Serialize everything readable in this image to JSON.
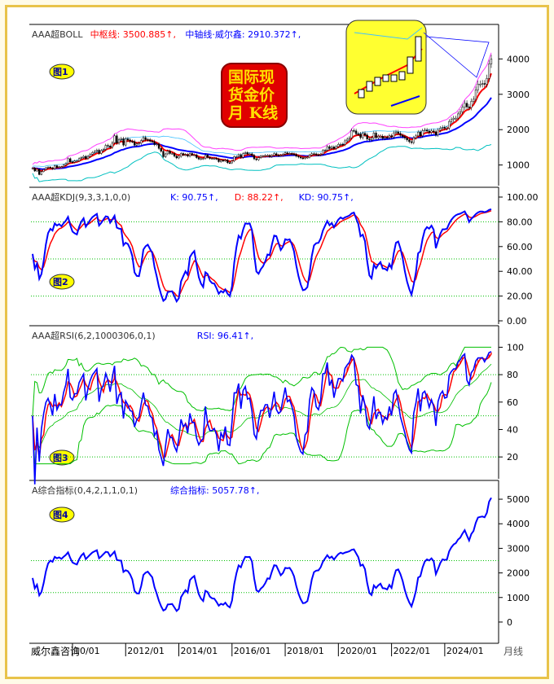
{
  "chart_data": {
    "type": "candlestick",
    "start": "2008/07",
    "period": "月线",
    "close": [
      915,
      830,
      880,
      730,
      815,
      870,
      920,
      940,
      920,
      890,
      980,
      930,
      950,
      950,
      1000,
      1040,
      1180,
      1090,
      1080,
      1115,
      1115,
      1180,
      1210,
      1245,
      1180,
      1245,
      1305,
      1355,
      1385,
      1420,
      1330,
      1410,
      1440,
      1555,
      1535,
      1500,
      1630,
      1825,
      1620,
      1720,
      1745,
      1565,
      1740,
      1710,
      1670,
      1665,
      1560,
      1600,
      1615,
      1690,
      1775,
      1720,
      1715,
      1675,
      1665,
      1580,
      1595,
      1470,
      1390,
      1235,
      1315,
      1395,
      1325,
      1325,
      1250,
      1200,
      1245,
      1325,
      1285,
      1295,
      1250,
      1325,
      1285,
      1285,
      1210,
      1170,
      1180,
      1185,
      1280,
      1215,
      1185,
      1185,
      1190,
      1170,
      1095,
      1135,
      1115,
      1140,
      1065,
      1060,
      1115,
      1235,
      1235,
      1290,
      1215,
      1320,
      1350,
      1310,
      1315,
      1275,
      1175,
      1150,
      1210,
      1250,
      1250,
      1270,
      1270,
      1240,
      1270,
      1320,
      1280,
      1270,
      1275,
      1305,
      1345,
      1320,
      1325,
      1315,
      1300,
      1250,
      1225,
      1200,
      1190,
      1215,
      1220,
      1280,
      1320,
      1315,
      1290,
      1285,
      1305,
      1410,
      1415,
      1520,
      1470,
      1510,
      1465,
      1520,
      1585,
      1585,
      1580,
      1685,
      1730,
      1770,
      1975,
      1965,
      1885,
      1880,
      1775,
      1895,
      1850,
      1735,
      1710,
      1770,
      1905,
      1770,
      1815,
      1815,
      1755,
      1785,
      1775,
      1830,
      1795,
      1910,
      1935,
      1895,
      1840,
      1805,
      1765,
      1710,
      1660,
      1635,
      1770,
      1825,
      1930,
      1825,
      1970,
      1990,
      1960,
      1920,
      1965,
      1940,
      1850,
      1985,
      2040,
      2065,
      2040,
      2045,
      2230,
      2285,
      2325,
      2325,
      2445,
      2505,
      2635,
      2745,
      2645,
      2625,
      2800,
      2860,
      3125,
      3290,
      3290,
      3305,
      3290,
      3450,
      3860,
      4000
    ],
    "x_ticks": [
      {
        "label": "10/01",
        "date": "2010/01"
      },
      {
        "label": "2012/01",
        "date": "2012/01"
      },
      {
        "label": "2014/01",
        "date": "2014/01"
      },
      {
        "label": "2016/01",
        "date": "2016/01"
      },
      {
        "label": "2018/01",
        "date": "2018/01"
      },
      {
        "label": "2020/01",
        "date": "2020/01"
      },
      {
        "label": "2022/01",
        "date": "2022/01"
      },
      {
        "label": "2024/01",
        "date": "2024/01"
      }
    ],
    "panels": [
      {
        "id": "boll",
        "title": "AAA超BOLL",
        "legend": [
          {
            "text": "中枢线: 3500.885",
            "color": "#ff0000"
          },
          {
            "text": "中轴线·威尔鑫: 2910.372",
            "color": "#0000ff"
          }
        ],
        "badge": "图1",
        "yticks": [
          "1000",
          "2000",
          "3000",
          "4000"
        ],
        "ylim": [
          600,
          4700
        ]
      },
      {
        "id": "kdj",
        "title": "AAA超KDJ(9,3,3,1,0,0)",
        "legend": [
          {
            "text": "K: 90.75",
            "color": "#0000ff"
          },
          {
            "text": "D: 88.22",
            "color": "#ff0000"
          },
          {
            "text": "KD: 90.75",
            "color": "#0000ff"
          }
        ],
        "badge": "图2",
        "yticks": [
          "0.00",
          "20.00",
          "40.00",
          "60.00",
          "80.00",
          "100.00"
        ],
        "ylim": [
          0,
          100
        ]
      },
      {
        "id": "rsi",
        "title": "AAA超RSI(6,2,1000306,0,1)",
        "legend": [
          {
            "text": "RSI: 96.41",
            "color": "#0000ff"
          }
        ],
        "badge": "图3",
        "yticks": [
          "20",
          "40",
          "60",
          "80",
          "100"
        ],
        "ylim": [
          10,
          105
        ]
      },
      {
        "id": "comp",
        "title": "A综合指标(0,4,2,1,1,0,1)",
        "legend": [
          {
            "text": "综合指标: 5057.78",
            "color": "#0000ff"
          }
        ],
        "badge": "图4",
        "yticks": [
          "0",
          "1000",
          "2000",
          "3000",
          "4000",
          "5000"
        ],
        "ylim": [
          -400,
          5300
        ]
      }
    ]
  },
  "logo": {
    "lines": [
      "国际现",
      "货金价",
      "月 K线"
    ]
  },
  "footer": {
    "brand": "威尔鑫咨询",
    "period": "月线"
  },
  "colors": {
    "frame": "#e8c34a",
    "up": "#ff0000",
    "down": "#0000ff",
    "grid": "#00c000",
    "badge": "#ffff00"
  }
}
